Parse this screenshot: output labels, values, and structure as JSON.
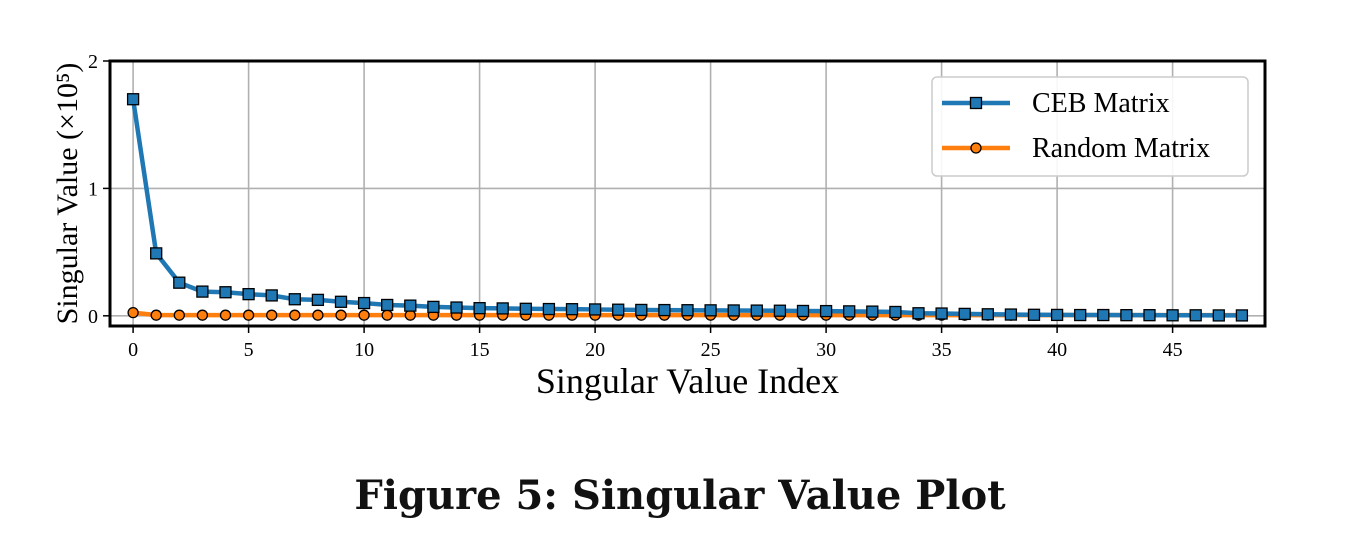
{
  "figure": {
    "caption": "Figure 5: Singular Value Plot"
  },
  "chart_data": {
    "type": "line",
    "xlabel": "Singular Value Index",
    "ylabel": "Singular Value (×10⁵)",
    "xlim": [
      -1,
      49
    ],
    "ylim": [
      -0.08,
      2
    ],
    "xticks": [
      0,
      5,
      10,
      15,
      20,
      25,
      30,
      35,
      40,
      45
    ],
    "xtick_labels": [
      "0",
      "5",
      "10",
      "15",
      "20",
      "25",
      "30",
      "35",
      "40",
      "45"
    ],
    "yticks": [
      0,
      1,
      2
    ],
    "ytick_labels": [
      "0",
      "1",
      "2"
    ],
    "grid": true,
    "legend_position": "top-right",
    "x": [
      0,
      1,
      2,
      3,
      4,
      5,
      6,
      7,
      8,
      9,
      10,
      11,
      12,
      13,
      14,
      15,
      16,
      17,
      18,
      19,
      20,
      21,
      22,
      23,
      24,
      25,
      26,
      27,
      28,
      29,
      30,
      31,
      32,
      33,
      34,
      35,
      36,
      37,
      38,
      39,
      40,
      41,
      42,
      43,
      44,
      45,
      46,
      47,
      48
    ],
    "series": [
      {
        "name": "CEB Matrix",
        "color": "#1f77b4",
        "marker": "square",
        "values": [
          1.7,
          0.49,
          0.26,
          0.19,
          0.185,
          0.17,
          0.16,
          0.13,
          0.125,
          0.11,
          0.1,
          0.085,
          0.08,
          0.07,
          0.065,
          0.06,
          0.058,
          0.055,
          0.053,
          0.052,
          0.05,
          0.048,
          0.046,
          0.045,
          0.044,
          0.043,
          0.042,
          0.041,
          0.04,
          0.038,
          0.037,
          0.035,
          0.033,
          0.03,
          0.02,
          0.018,
          0.015,
          0.012,
          0.01,
          0.008,
          0.007,
          0.006,
          0.006,
          0.005,
          0.005,
          0.004,
          0.004,
          0.003,
          0.003
        ]
      },
      {
        "name": "Random Matrix",
        "color": "#ff7f0e",
        "marker": "circle",
        "values": [
          0.025,
          0.005,
          0.005,
          0.005,
          0.005,
          0.005,
          0.005,
          0.005,
          0.005,
          0.005,
          0.005,
          0.005,
          0.005,
          0.005,
          0.005,
          0.005,
          0.005,
          0.005,
          0.005,
          0.005,
          0.005,
          0.005,
          0.005,
          0.005,
          0.005,
          0.005,
          0.005,
          0.005,
          0.005,
          0.005,
          0.005,
          0.005,
          0.005,
          0.005,
          0.005,
          0.005,
          0.005,
          0.005,
          0.005,
          0.005,
          0.005,
          0.005,
          0.005,
          0.005,
          0.005,
          0.005,
          0.005,
          0.005,
          0.005
        ]
      }
    ]
  }
}
